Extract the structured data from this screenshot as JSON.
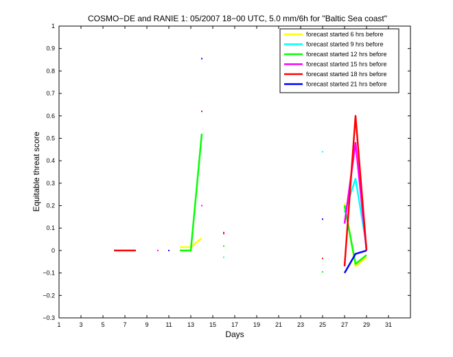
{
  "chart_data": {
    "type": "line",
    "title": "COSMO−DE and RANIE 1: 05/2007 18−00 UTC, 5.0 mm/6h for \"Baltic Sea coast\"",
    "xlabel": "Days",
    "ylabel": "Equitable threat score",
    "xlim": [
      1,
      33
    ],
    "ylim": [
      -0.3,
      1
    ],
    "xticks": [
      1,
      3,
      5,
      7,
      9,
      11,
      13,
      15,
      17,
      19,
      21,
      23,
      25,
      27,
      29,
      31
    ],
    "yticks": [
      -0.3,
      -0.2,
      -0.1,
      0,
      0.1,
      0.2,
      0.3,
      0.4,
      0.5,
      0.6,
      0.7,
      0.8,
      0.9,
      1
    ],
    "legend_position": "top-right",
    "series": [
      {
        "name": "forecast started 6 hrs before",
        "color": "#ffff00",
        "lines": [
          [
            [
              12,
              0.015
            ],
            [
              13,
              0.015
            ],
            [
              14,
              0.055
            ]
          ],
          [
            [
              27,
              0.21
            ],
            [
              28,
              -0.07
            ],
            [
              29,
              -0.03
            ]
          ]
        ],
        "points": []
      },
      {
        "name": "forecast started 9 hrs before",
        "color": "#00ffff",
        "lines": [
          [
            [
              27,
              0.17
            ],
            [
              28,
              0.32
            ],
            [
              29,
              0.02
            ]
          ]
        ],
        "points": [
          [
            16,
            -0.03
          ],
          [
            25,
            0.44
          ]
        ]
      },
      {
        "name": "forecast started 12 hrs before",
        "color": "#00ff00",
        "lines": [
          [
            [
              12,
              0.0
            ],
            [
              13,
              0.0
            ],
            [
              14,
              0.52
            ]
          ],
          [
            [
              27,
              0.2
            ],
            [
              28,
              -0.06
            ],
            [
              29,
              -0.02
            ]
          ]
        ],
        "points": [
          [
            16,
            0.02
          ],
          [
            25,
            -0.095
          ]
        ]
      },
      {
        "name": "forecast started 15 hrs before",
        "color": "#ff00ff",
        "lines": [
          [
            [
              27,
              0.12
            ],
            [
              28,
              0.48
            ],
            [
              29,
              0.0
            ]
          ]
        ],
        "points": [
          [
            10,
            0.0
          ],
          [
            14,
            0.2
          ],
          [
            16,
            0.075
          ]
        ]
      },
      {
        "name": "forecast started 18 hrs before",
        "color": "#ff0000",
        "lines": [
          [
            [
              6,
              0.0
            ],
            [
              7,
              0.0
            ],
            [
              8,
              0.0
            ]
          ],
          [
            [
              27,
              -0.07
            ],
            [
              28,
              0.6
            ],
            [
              29,
              0.0
            ]
          ]
        ],
        "points": [
          [
            14,
            0.62
          ],
          [
            16,
            0.08
          ],
          [
            25,
            -0.035
          ]
        ]
      },
      {
        "name": "forecast started 21 hrs before",
        "color": "#0000ff",
        "lines": [
          [
            [
              27,
              -0.1
            ],
            [
              28,
              -0.015
            ],
            [
              29,
              0.0
            ]
          ]
        ],
        "points": [
          [
            11,
            0.0
          ],
          [
            14,
            0.855
          ],
          [
            25,
            0.14
          ]
        ]
      }
    ]
  }
}
